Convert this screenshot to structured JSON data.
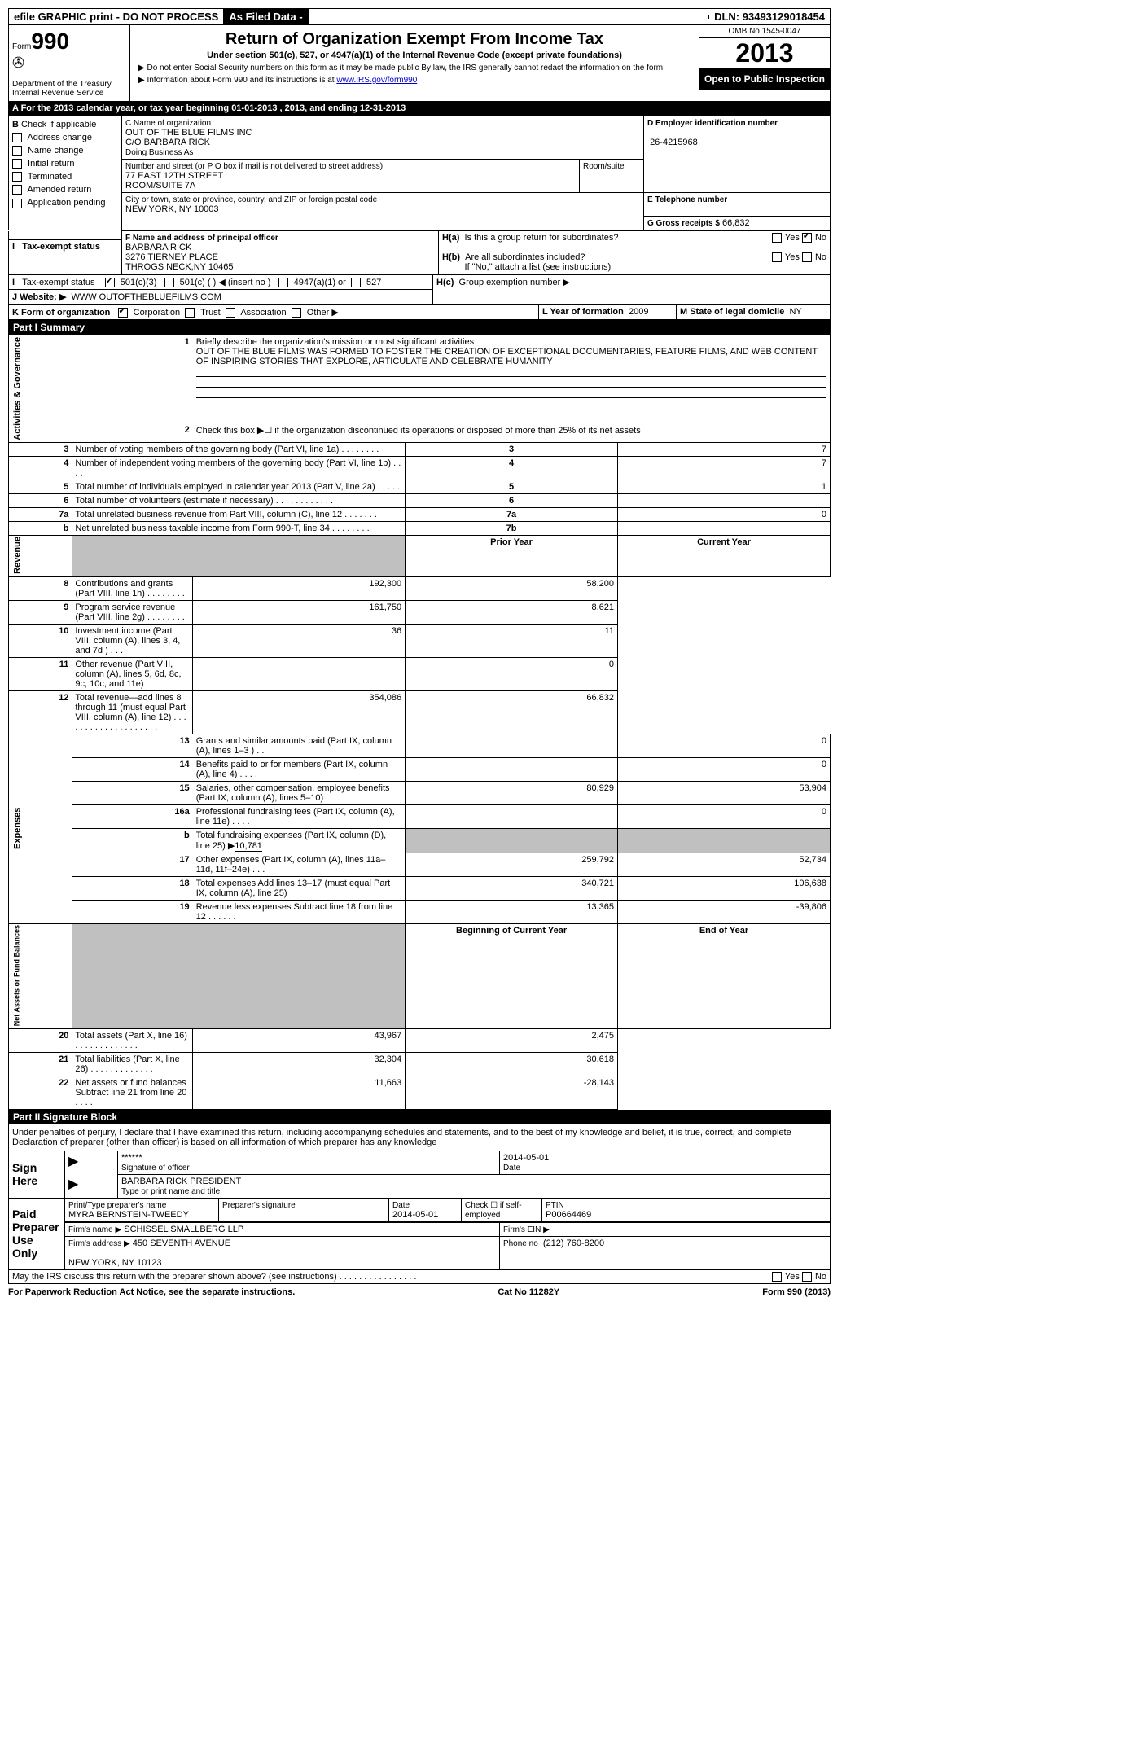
{
  "topbar": {
    "efile": "efile GRAPHIC print - DO NOT PROCESS",
    "asfiled": "As Filed Data -",
    "dln_label": "DLN:",
    "dln": "93493129018454"
  },
  "header": {
    "form_prefix": "Form",
    "form_no": "990",
    "dept": "Department of the Treasury\nInternal Revenue Service",
    "title": "Return of Organization Exempt From Income Tax",
    "subtitle": "Under section 501(c), 527, or 4947(a)(1) of the Internal Revenue Code (except private foundations)",
    "note1": "▶ Do not enter Social Security numbers on this form as it may be made public  By law, the IRS generally cannot redact the information on the form",
    "note2": "▶ Information about Form 990 and its instructions is at ",
    "note2_link": "www.IRS.gov/form990",
    "omb": "OMB No  1545-0047",
    "year": "2013",
    "open": "Open to Public Inspection"
  },
  "line_a": "A  For the 2013 calendar year, or tax year beginning 01-01-2013     , 2013, and ending 12-31-2013",
  "section_b": {
    "label": "B",
    "check_label": "Check if applicable",
    "items": [
      "Address change",
      "Name change",
      "Initial return",
      "Terminated",
      "Amended return",
      "Application pending"
    ]
  },
  "section_c": {
    "name_label": "C Name of organization",
    "name": "OUT OF THE BLUE FILMS INC",
    "co": "C/O BARBARA RICK",
    "dba_label": "Doing Business As",
    "street_label": "Number and street (or P O  box if mail is not delivered to street address)",
    "room_label": "Room/suite",
    "street": "77 EAST 12TH STREET\nROOM/SUITE 7A",
    "city_label": "City or town, state or province, country, and ZIP or foreign postal code",
    "city": "NEW YORK, NY  10003"
  },
  "section_d": {
    "label": "D Employer identification number",
    "value": "26-4215968"
  },
  "section_e": {
    "label": "E Telephone number",
    "value": ""
  },
  "section_g": {
    "label": "G Gross receipts $",
    "value": "66,832"
  },
  "section_f": {
    "label": "F   Name and address of principal officer",
    "name": "BARBARA RICK",
    "addr1": "3276 TIERNEY PLACE",
    "addr2": "THROGS NECK,NY  10465"
  },
  "section_h": {
    "ha": "Is this a group return for subordinates?",
    "ha_yes": "Yes",
    "ha_no": "No",
    "hb": "Are all subordinates included?",
    "hb_note": "If \"No,\" attach a list  (see instructions)",
    "hc": "Group exemption number ▶"
  },
  "line_i": {
    "label": "I   Tax-exempt status",
    "opts": [
      "501(c)(3)",
      "501(c) (  ) ◀ (insert no )",
      "4947(a)(1) or",
      "527"
    ]
  },
  "line_j": {
    "label": "J   Website: ▶",
    "value": "WWW OUTOFTHEBLUEFILMS COM"
  },
  "line_k": {
    "label": "K Form of organization",
    "opts": [
      "Corporation",
      "Trust",
      "Association",
      "Other ▶"
    ],
    "l_label": "L Year of formation",
    "l_value": "2009",
    "m_label": "M State of legal domicile",
    "m_value": "NY"
  },
  "part1": {
    "header": "Part I     Summary",
    "ag_label": "Activities & Governance",
    "rev_label": "Revenue",
    "exp_label": "Expenses",
    "na_label": "Net Assets or Fund Balances",
    "q1_label": "Briefly describe the organization's mission or most significant activities",
    "q1_text": "OUT OF THE BLUE FILMS WAS FORMED TO FOSTER THE CREATION OF EXCEPTIONAL DOCUMENTARIES, FEATURE FILMS, AND WEB CONTENT OF INSPIRING STORIES THAT EXPLORE, ARTICULATE AND CELEBRATE HUMANITY",
    "q2": "Check this box ▶☐ if the organization discontinued its operations or disposed of more than 25% of its net assets",
    "rows_ag": [
      {
        "n": "3",
        "d": "Number of voting members of the governing body (Part VI, line 1a)  .    .    .    .    .    .    .    .",
        "r": "3",
        "v": "7"
      },
      {
        "n": "4",
        "d": "Number of independent voting members of the governing body (Part VI, line 1b)   .    .    .    .",
        "r": "4",
        "v": "7"
      },
      {
        "n": "5",
        "d": "Total number of individuals employed in calendar year 2013 (Part V, line 2a)   .    .    .    .    .",
        "r": "5",
        "v": "1"
      },
      {
        "n": "6",
        "d": "Total number of volunteers (estimate if necessary)    .    .    .    .    .    .    .    .    .    .    .    .",
        "r": "6",
        "v": ""
      },
      {
        "n": "7a",
        "d": "Total unrelated business revenue from Part VIII, column (C), line 12    .    .    .    .    .    .    .",
        "r": "7a",
        "v": "0"
      },
      {
        "n": "b",
        "d": "Net unrelated business taxable income from Form 990-T, line 34    .    .    .    .    .    .    .    .",
        "r": "7b",
        "v": ""
      }
    ],
    "col_prior": "Prior Year",
    "col_current": "Current Year",
    "rows_rev": [
      {
        "n": "8",
        "d": "Contributions and grants (Part VIII, line 1h)    .    .    .    .    .    .    .    .",
        "p": "192,300",
        "c": "58,200"
      },
      {
        "n": "9",
        "d": "Program service revenue (Part VIII, line 2g)     .    .    .    .    .    .    .    .",
        "p": "161,750",
        "c": "8,621"
      },
      {
        "n": "10",
        "d": "Investment income (Part VIII, column (A), lines 3, 4, and 7d )    .    .    .",
        "p": "36",
        "c": "11"
      },
      {
        "n": "11",
        "d": "Other revenue (Part VIII, column (A), lines 5, 6d, 8c, 9c, 10c, and 11e)",
        "p": "",
        "c": "0"
      },
      {
        "n": "12",
        "d": "Total revenue—add lines 8 through 11 (must equal Part VIII, column (A), line 12) .    .    .    .    .    .    .    .    .    .    .    .    .    .    .    .    .    .    .    .",
        "p": "354,086",
        "c": "66,832"
      }
    ],
    "rows_exp": [
      {
        "n": "13",
        "d": "Grants and similar amounts paid (Part IX, column (A), lines 1–3 )   .    .",
        "p": "",
        "c": "0"
      },
      {
        "n": "14",
        "d": "Benefits paid to or for members (Part IX, column (A), line 4)    .    .    .    .",
        "p": "",
        "c": "0"
      },
      {
        "n": "15",
        "d": "Salaries, other compensation, employee benefits (Part IX, column (A), lines 5–10)",
        "p": "80,929",
        "c": "53,904"
      },
      {
        "n": "16a",
        "d": "Professional fundraising fees (Part IX, column (A), line 11e)    .    .    .    .",
        "p": "",
        "c": "0"
      },
      {
        "n": "b",
        "d": "Total fundraising expenses (Part IX, column (D), line 25) ▶",
        "fval": "10,781",
        "p": "GREY",
        "c": "GREY"
      },
      {
        "n": "17",
        "d": "Other expenses (Part IX, column (A), lines 11a–11d, 11f–24e)    .    .    .",
        "p": "259,792",
        "c": "52,734"
      },
      {
        "n": "18",
        "d": "Total expenses  Add lines 13–17 (must equal Part IX, column (A), line 25)",
        "p": "340,721",
        "c": "106,638"
      },
      {
        "n": "19",
        "d": "Revenue less expenses  Subtract line 18 from line 12    .    .    .    .    .    .",
        "p": "13,365",
        "c": "-39,806"
      }
    ],
    "col_beg": "Beginning of Current Year",
    "col_end": "End of Year",
    "rows_na": [
      {
        "n": "20",
        "d": "Total assets (Part X, line 16)    .    .    .    .    .    .    .    .    .    .    .    .    .",
        "p": "43,967",
        "c": "2,475"
      },
      {
        "n": "21",
        "d": "Total liabilities (Part X, line 26)    .    .    .    .    .    .    .    .    .    .    .    .    .",
        "p": "32,304",
        "c": "30,618"
      },
      {
        "n": "22",
        "d": "Net assets or fund balances  Subtract line 21 from line 20    .    .    .    .",
        "p": "11,663",
        "c": "-28,143"
      }
    ]
  },
  "part2": {
    "header": "Part II    Signature Block",
    "decl": "Under penalties of perjury, I declare that I have examined this return, including accompanying schedules and statements, and to the best of my knowledge and belief, it is true, correct, and complete  Declaration of preparer (other than officer) is based on all information of which preparer has any knowledge",
    "sign_here": "Sign Here",
    "sig_stars": "******",
    "sig_date": "2014-05-01",
    "sig_officer_label": "Signature of officer",
    "date_label": "Date",
    "officer_name": "BARBARA RICK PRESIDENT",
    "officer_type_label": "Type or print name and title",
    "paid": "Paid Preparer Use Only",
    "prep_name_label": "Print/Type preparer's name",
    "prep_name": "MYRA BERNSTEIN-TWEEDY",
    "prep_sig_label": "Preparer's signature",
    "prep_date_label": "Date",
    "prep_date": "2014-05-01",
    "check_if": "Check ☐ if self-employed",
    "ptin_label": "PTIN",
    "ptin": "P00664469",
    "firm_name_label": "Firm's name     ▶",
    "firm_name": "SCHISSEL SMALLBERG LLP",
    "firm_ein_label": "Firm's EIN ▶",
    "firm_addr_label": "Firm's address ▶",
    "firm_addr": "450 SEVENTH AVENUE\n\nNEW YORK, NY  10123",
    "phone_label": "Phone no",
    "phone": "(212) 760-8200",
    "discuss": "May the IRS discuss this return with the preparer shown above? (see instructions)    .    .    .    .    .    .    .    .    .    .    .    .    .    .    .    .",
    "yes": "Yes",
    "no": "No"
  },
  "footer": {
    "left": "For Paperwork Reduction Act Notice, see the separate instructions.",
    "center": "Cat  No  11282Y",
    "right": "Form 990 (2013)"
  }
}
